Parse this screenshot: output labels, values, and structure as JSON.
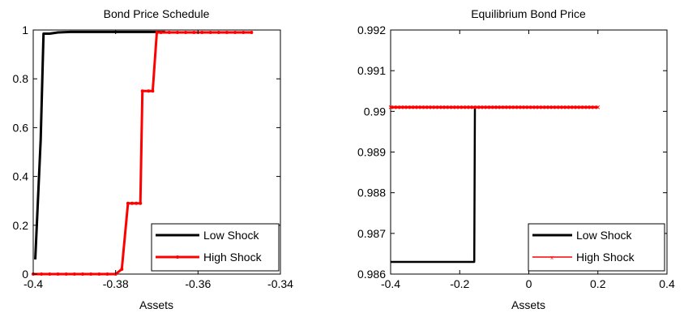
{
  "chart_data": [
    {
      "type": "line",
      "title": "Bond Price Schedule",
      "xlabel": "Assets",
      "ylabel": "",
      "xlim": [
        -0.4,
        -0.34
      ],
      "ylim": [
        0,
        1
      ],
      "xticks": [
        "-0.4",
        "-0.38",
        "-0.36",
        "-0.34"
      ],
      "xtick_values": [
        -0.4,
        -0.38,
        -0.36,
        -0.34
      ],
      "yticks": [
        "0",
        "0.2",
        "0.4",
        "0.6",
        "0.8",
        "1"
      ],
      "ytick_values": [
        0,
        0.2,
        0.4,
        0.6,
        0.8,
        1
      ],
      "grid": false,
      "legend_position": "bottom-right",
      "series": [
        {
          "name": "Low Shock",
          "color": "#000000",
          "marker": "none",
          "x": [
            -0.3995,
            -0.3982,
            -0.3975,
            -0.397,
            -0.396,
            -0.394,
            -0.391,
            -0.388,
            -0.385,
            -0.38,
            -0.375,
            -0.37,
            -0.368
          ],
          "y": [
            0.06,
            0.55,
            0.985,
            0.985,
            0.985,
            0.99,
            0.992,
            0.992,
            0.992,
            0.992,
            0.992,
            0.992,
            0.992
          ]
        },
        {
          "name": "High Shock",
          "color": "#ff0000",
          "marker": "dot",
          "x": [
            -0.4,
            -0.398,
            -0.396,
            -0.394,
            -0.392,
            -0.39,
            -0.388,
            -0.386,
            -0.384,
            -0.382,
            -0.38,
            -0.3785,
            -0.377,
            -0.376,
            -0.375,
            -0.374,
            -0.3735,
            -0.372,
            -0.371,
            -0.37,
            -0.369,
            -0.367,
            -0.365,
            -0.363,
            -0.361,
            -0.359,
            -0.357,
            -0.355,
            -0.353,
            -0.351,
            -0.349,
            -0.347
          ],
          "y": [
            0,
            0,
            0,
            0,
            0,
            0,
            0,
            0,
            0,
            0,
            0,
            0.02,
            0.29,
            0.29,
            0.29,
            0.29,
            0.75,
            0.75,
            0.75,
            0.99,
            0.99,
            0.99,
            0.99,
            0.99,
            0.99,
            0.99,
            0.99,
            0.99,
            0.99,
            0.99,
            0.99,
            0.99
          ]
        }
      ]
    },
    {
      "type": "line",
      "title": "Equilibrium Bond Price",
      "xlabel": "Assets",
      "ylabel": "",
      "xlim": [
        -0.4,
        0.4
      ],
      "ylim": [
        0.986,
        0.992
      ],
      "xticks": [
        "-0.4",
        "-0.2",
        "0",
        "0.2",
        "0.4"
      ],
      "xtick_values": [
        -0.4,
        -0.2,
        0,
        0.2,
        0.4
      ],
      "yticks": [
        "0.986",
        "0.987",
        "0.988",
        "0.989",
        "0.99",
        "0.991",
        "0.992"
      ],
      "ytick_values": [
        0.986,
        0.987,
        0.988,
        0.989,
        0.99,
        0.991,
        0.992
      ],
      "grid": false,
      "legend_position": "bottom-right",
      "series": [
        {
          "name": "Low Shock",
          "color": "#000000",
          "marker": "none",
          "x": [
            -0.4,
            -0.158,
            -0.156,
            0.0
          ],
          "y": [
            0.9863,
            0.9863,
            0.9901,
            0.9901
          ]
        },
        {
          "name": "High Shock",
          "color": "#ff0000",
          "marker": "x",
          "x": [
            -0.4,
            -0.3,
            -0.2,
            -0.1,
            0,
            0.1,
            0.2
          ],
          "y": [
            0.9901,
            0.9901,
            0.9901,
            0.9901,
            0.9901,
            0.9901,
            0.9901
          ]
        }
      ]
    }
  ]
}
